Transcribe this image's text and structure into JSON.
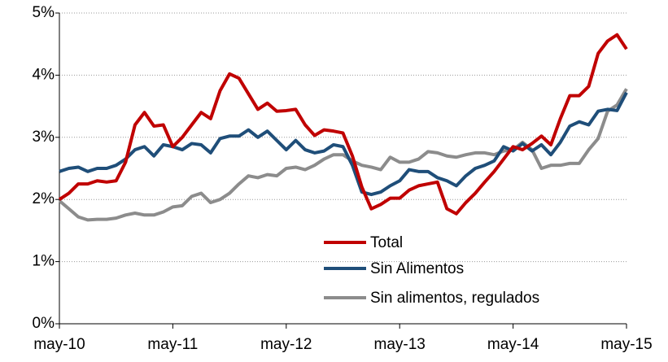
{
  "chart_data": {
    "type": "line",
    "categories": [
      "may-10",
      null,
      null,
      null,
      null,
      null,
      null,
      null,
      null,
      null,
      null,
      null,
      "may-11",
      null,
      null,
      null,
      null,
      null,
      null,
      null,
      null,
      null,
      null,
      null,
      "may-12",
      null,
      null,
      null,
      null,
      null,
      null,
      null,
      null,
      null,
      null,
      null,
      "may-13",
      null,
      null,
      null,
      null,
      null,
      null,
      null,
      null,
      null,
      null,
      null,
      "may-14",
      null,
      null,
      null,
      null,
      null,
      null,
      null,
      null,
      null,
      null,
      null,
      "may-15"
    ],
    "series": [
      {
        "name": "Total",
        "color": "#c00000",
        "values": [
          2.0,
          2.1,
          2.25,
          2.25,
          2.3,
          2.28,
          2.3,
          2.6,
          3.2,
          3.4,
          3.18,
          3.2,
          2.85,
          3.0,
          3.2,
          3.4,
          3.3,
          3.75,
          4.02,
          3.95,
          3.7,
          3.45,
          3.55,
          3.42,
          3.43,
          3.45,
          3.2,
          3.03,
          3.12,
          3.1,
          3.07,
          2.7,
          2.2,
          1.85,
          1.92,
          2.02,
          2.02,
          2.15,
          2.22,
          2.25,
          2.28,
          1.85,
          1.77,
          1.95,
          2.1,
          2.28,
          2.45,
          2.65,
          2.85,
          2.8,
          2.9,
          3.02,
          2.88,
          3.3,
          3.67,
          3.67,
          3.82,
          4.35,
          4.55,
          4.65,
          4.42
        ]
      },
      {
        "name": "Sin Alimentos",
        "color": "#1f4e79",
        "values": [
          2.45,
          2.5,
          2.52,
          2.45,
          2.5,
          2.5,
          2.55,
          2.65,
          2.8,
          2.85,
          2.7,
          2.88,
          2.85,
          2.8,
          2.9,
          2.88,
          2.75,
          2.98,
          3.02,
          3.02,
          3.12,
          3.0,
          3.1,
          2.95,
          2.8,
          2.95,
          2.8,
          2.75,
          2.78,
          2.88,
          2.85,
          2.55,
          2.12,
          2.08,
          2.12,
          2.22,
          2.3,
          2.48,
          2.45,
          2.45,
          2.35,
          2.3,
          2.22,
          2.38,
          2.5,
          2.55,
          2.62,
          2.85,
          2.78,
          2.9,
          2.78,
          2.88,
          2.72,
          2.92,
          3.18,
          3.25,
          3.2,
          3.42,
          3.45,
          3.43,
          3.72
        ]
      },
      {
        "name": "Sin alimentos, regulados",
        "color": "#8c8c8c",
        "values": [
          1.98,
          1.85,
          1.72,
          1.67,
          1.68,
          1.68,
          1.7,
          1.75,
          1.78,
          1.75,
          1.75,
          1.8,
          1.88,
          1.9,
          2.05,
          2.1,
          1.95,
          2.0,
          2.1,
          2.25,
          2.38,
          2.35,
          2.4,
          2.38,
          2.5,
          2.52,
          2.48,
          2.55,
          2.65,
          2.72,
          2.72,
          2.62,
          2.55,
          2.52,
          2.48,
          2.68,
          2.6,
          2.6,
          2.65,
          2.77,
          2.75,
          2.7,
          2.68,
          2.72,
          2.75,
          2.75,
          2.72,
          2.78,
          2.8,
          2.92,
          2.8,
          2.5,
          2.55,
          2.55,
          2.58,
          2.58,
          2.8,
          2.98,
          3.42,
          3.52,
          3.78
        ]
      }
    ],
    "ylim": [
      0,
      5
    ],
    "yticks": [
      {
        "value": 0,
        "label": "0%"
      },
      {
        "value": 1,
        "label": "1%"
      },
      {
        "value": 2,
        "label": "2%"
      },
      {
        "value": 3,
        "label": "3%"
      },
      {
        "value": 4,
        "label": "4%"
      },
      {
        "value": 5,
        "label": "5%"
      }
    ],
    "grid": true,
    "legend": "lower center"
  }
}
